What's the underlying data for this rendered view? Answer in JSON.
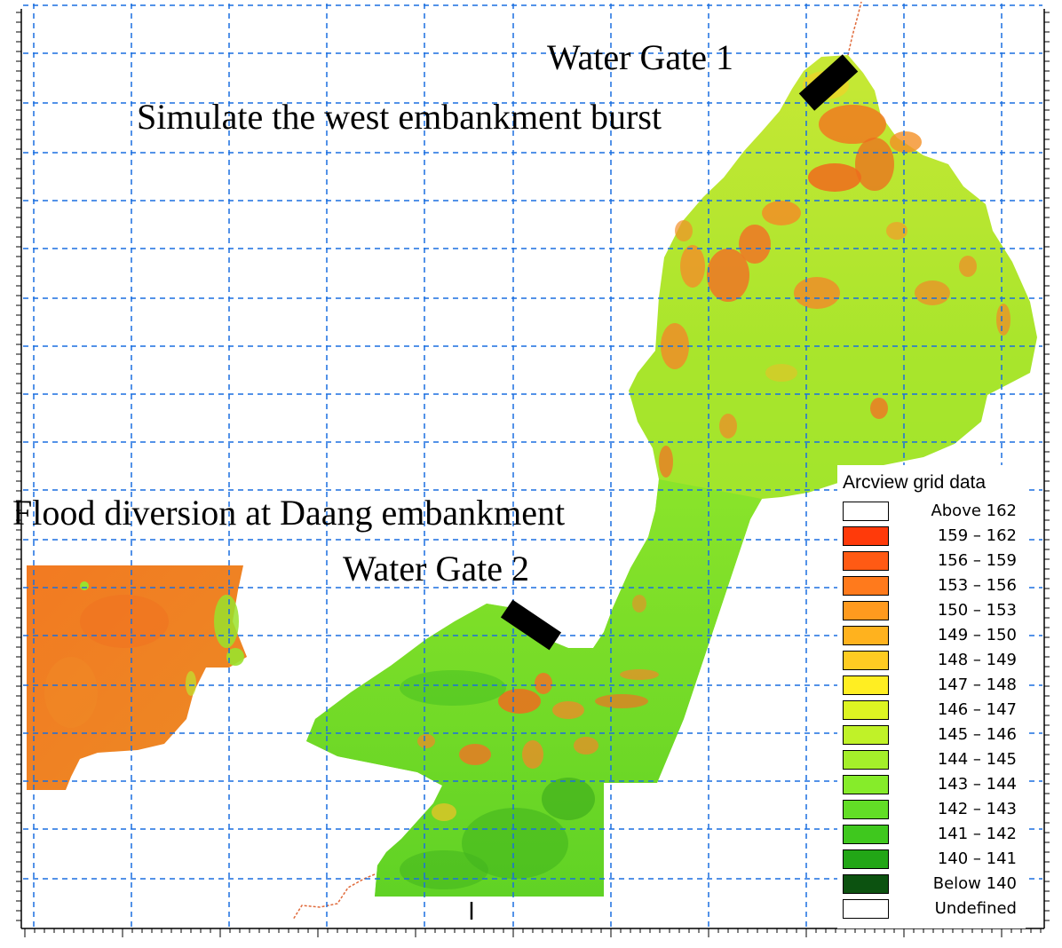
{
  "labels": {
    "water_gate_1": "Water Gate 1",
    "west_burst": "Simulate the west embankment burst",
    "daang": "Flood diversion at Daang embankment",
    "water_gate_2": "Water Gate 2"
  },
  "legend": {
    "title": "Arcview grid data",
    "items": [
      {
        "label": "Above 162",
        "color": "#ffffff"
      },
      {
        "label": "159 – 162",
        "color": "#ff3a0a"
      },
      {
        "label": "156 – 159",
        "color": "#ff5a14"
      },
      {
        "label": "153 – 156",
        "color": "#ff7a1c"
      },
      {
        "label": "150 – 153",
        "color": "#ff9a1e"
      },
      {
        "label": "149 – 150",
        "color": "#ffb21e"
      },
      {
        "label": "148 – 149",
        "color": "#ffcc22"
      },
      {
        "label": "147 – 148",
        "color": "#ffee22"
      },
      {
        "label": "146 – 147",
        "color": "#ddf522"
      },
      {
        "label": "145 – 146",
        "color": "#c0f228"
      },
      {
        "label": "144 – 145",
        "color": "#a4ef2a"
      },
      {
        "label": "143 – 144",
        "color": "#86ec2a"
      },
      {
        "label": "142 – 143",
        "color": "#62de26"
      },
      {
        "label": "141 – 142",
        "color": "#3fc81e"
      },
      {
        "label": "140 – 141",
        "color": "#22a616"
      },
      {
        "label": "Below 140",
        "color": "#0c5210"
      },
      {
        "label": "Undefined",
        "color": "#ffffff"
      }
    ]
  },
  "colors": {
    "grid": "#1a6fe0",
    "frame": "#000000",
    "gate": "#000000",
    "terrain_green": "#7ee62c",
    "terrain_orange": "#f47a24",
    "river": "#e06a3a"
  }
}
